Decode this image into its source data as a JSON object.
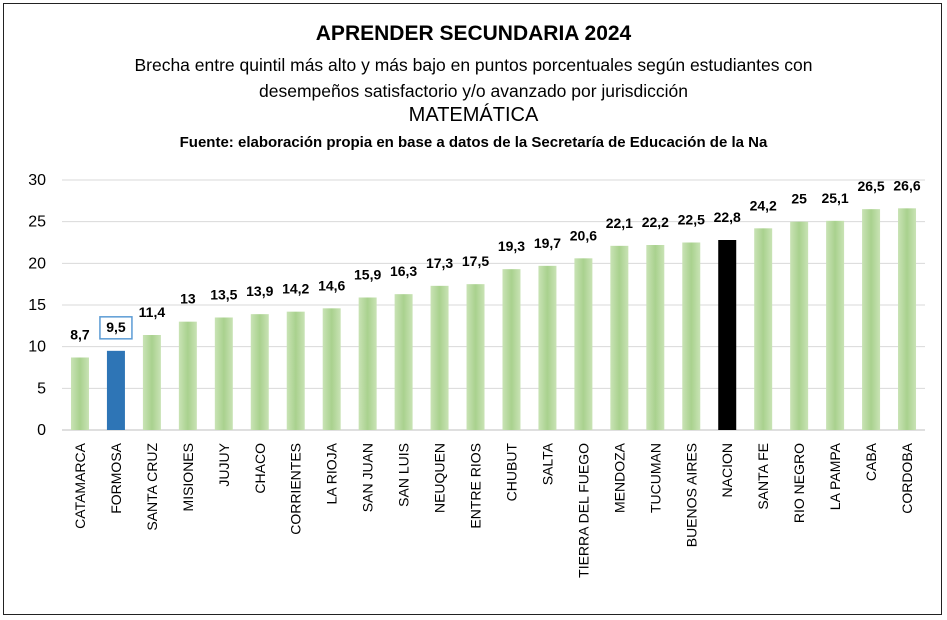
{
  "chart_data": {
    "type": "bar",
    "title": "APRENDER SECUNDARIA 2024",
    "subtitle_line1": "Brecha entre quintil más alto y más bajo en puntos porcentuales según estudiantes con",
    "subtitle_line2": "desempeños satisfactorio y/o avanzado por jurisdicción",
    "subject": "MATEMÁTICA",
    "source": "Fuente: elaboración propia en base a datos de la Secretaría de Educación de la Na",
    "categories": [
      "CATAMARCA",
      "FORMOSA",
      "SANTA CRUZ",
      "MISIONES",
      "JUJUY",
      "CHACO",
      "CORRIENTES",
      "LA RIOJA",
      "SAN JUAN",
      "SAN LUIS",
      "NEUQUEN",
      "ENTRE RIOS",
      "CHUBUT",
      "SALTA",
      "TIERRA DEL FUEGO",
      "MENDOZA",
      "TUCUMAN",
      "BUENOS AIRES",
      "NACION",
      "SANTA FE",
      "RIO NEGRO",
      "LA PAMPA",
      "CABA",
      "CORDOBA"
    ],
    "values": [
      8.7,
      9.5,
      11.4,
      13,
      13.5,
      13.9,
      14.2,
      14.6,
      15.9,
      16.3,
      17.3,
      17.5,
      19.3,
      19.7,
      20.6,
      22.1,
      22.2,
      22.5,
      22.8,
      24.2,
      25,
      25.1,
      26.5,
      26.6
    ],
    "value_labels": [
      "8,7",
      "9,5",
      "11,4",
      "13",
      "13,5",
      "13,9",
      "14,2",
      "14,6",
      "15,9",
      "16,3",
      "17,3",
      "17,5",
      "19,3",
      "19,7",
      "20,6",
      "22,1",
      "22,2",
      "22,5",
      "22,8",
      "24,2",
      "25",
      "25,1",
      "26,5",
      "26,6"
    ],
    "highlight": {
      "FORMOSA": "blue",
      "NACION": "black"
    },
    "y_ticks": [
      0,
      5,
      10,
      15,
      20,
      25,
      30
    ],
    "ylim": [
      0,
      30
    ],
    "grid": true,
    "colors": {
      "default": "#a9d18e",
      "highlight": "#2e75b6",
      "nacion": "#000000",
      "grid": "#d9d9d9",
      "label_box": "#5b9bd5"
    }
  }
}
